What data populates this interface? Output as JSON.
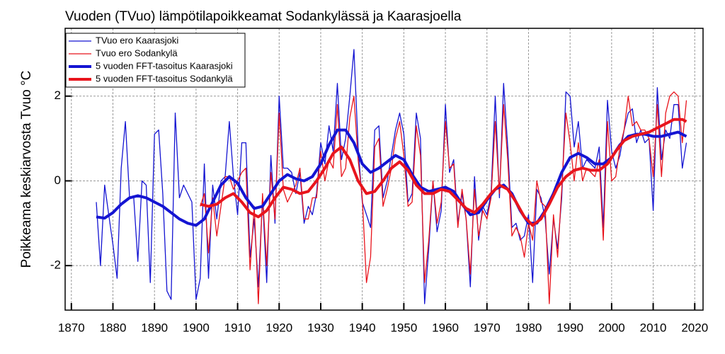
{
  "chart_data": {
    "type": "line",
    "title": "Vuoden (TVuo) lämpötilapoikkeamat Sodankylässä ja Kaarasjoella",
    "y_label": "Poikkeama keskiarvosta Tvuo °C",
    "xlim": [
      1868.5,
      2022
    ],
    "ylim": [
      -3.05,
      3.6
    ],
    "xticks": [
      1870,
      1880,
      1890,
      1900,
      1910,
      1920,
      1930,
      1940,
      1950,
      1960,
      1970,
      1980,
      1990,
      2000,
      2010,
      2020
    ],
    "yticks": [
      -2,
      0,
      2
    ],
    "grid": true,
    "legend": "top-left",
    "series": [
      {
        "name": "TVuo ero Kaarasjoki",
        "color": "#1414d2",
        "width": 1.3,
        "x": [
          1876,
          1877,
          1878,
          1879,
          1880,
          1881,
          1882,
          1883,
          1884,
          1885,
          1886,
          1887,
          1888,
          1889,
          1890,
          1891,
          1892,
          1893,
          1894,
          1895,
          1896,
          1897,
          1898,
          1899,
          1900,
          1901,
          1902,
          1903,
          1904,
          1905,
          1906,
          1907,
          1908,
          1909,
          1910,
          1911,
          1912,
          1913,
          1914,
          1915,
          1916,
          1917,
          1918,
          1919,
          1920,
          1921,
          1922,
          1923,
          1924,
          1925,
          1926,
          1927,
          1928,
          1929,
          1930,
          1931,
          1932,
          1933,
          1934,
          1935,
          1936,
          1937,
          1938,
          1939,
          1940,
          1941,
          1942,
          1943,
          1944,
          1945,
          1946,
          1947,
          1948,
          1949,
          1950,
          1951,
          1952,
          1953,
          1954,
          1955,
          1956,
          1957,
          1958,
          1959,
          1960,
          1961,
          1962,
          1963,
          1964,
          1965,
          1966,
          1967,
          1968,
          1969,
          1970,
          1971,
          1972,
          1973,
          1974,
          1975,
          1976,
          1977,
          1978,
          1979,
          1980,
          1981,
          1982,
          1983,
          1984,
          1985,
          1986,
          1987,
          1988,
          1989,
          1990,
          1991,
          1992,
          1993,
          1994,
          1995,
          1996,
          1997,
          1998,
          1999,
          2000,
          2001,
          2002,
          2003,
          2004,
          2005,
          2006,
          2007,
          2008,
          2009,
          2010,
          2011,
          2012,
          2013,
          2014,
          2015,
          2016,
          2017,
          2018
        ],
        "values": [
          -0.5,
          -2.0,
          -0.1,
          -0.8,
          -1.5,
          -2.3,
          0.3,
          1.4,
          -0.4,
          -0.4,
          -1.9,
          0.0,
          -0.1,
          -2.4,
          1.1,
          1.2,
          -0.3,
          -2.6,
          -2.8,
          1.6,
          -0.4,
          -0.1,
          -0.3,
          -0.5,
          -2.8,
          -2.3,
          0.4,
          -2.3,
          -0.1,
          -0.9,
          0.0,
          0.1,
          1.4,
          0.1,
          -0.8,
          0.9,
          0.9,
          -1.8,
          -0.9,
          -2.5,
          -0.4,
          -2.4,
          0.6,
          -1.0,
          2.0,
          0.3,
          0.3,
          0.2,
          -0.3,
          0.2,
          -1.0,
          -0.6,
          -0.8,
          -0.3,
          0.9,
          0.4,
          1.3,
          0.7,
          2.3,
          0.5,
          1.0,
          2.0,
          3.1,
          0.8,
          -0.5,
          -0.8,
          -1.1,
          1.2,
          1.3,
          -0.4,
          0.0,
          0.6,
          1.2,
          1.6,
          1.1,
          -0.5,
          -0.3,
          1.6,
          1.0,
          -2.9,
          -1.6,
          0.0,
          -1.2,
          -0.7,
          1.8,
          0.2,
          0.5,
          -1.0,
          -0.3,
          -0.9,
          -2.5,
          0.1,
          -1.4,
          -0.6,
          -0.8,
          -0.3,
          2.0,
          -0.4,
          2.3,
          0.8,
          -1.1,
          -1.0,
          -1.4,
          -1.3,
          -0.8,
          -2.4,
          -0.2,
          -0.4,
          -0.9,
          -2.2,
          -0.9,
          -1.6,
          -0.4,
          2.1,
          2.0,
          0.8,
          1.4,
          0.3,
          0.5,
          0.4,
          0.3,
          0.8,
          -1.1,
          1.9,
          0.7,
          0.3,
          0.6,
          1.2,
          1.6,
          1.7,
          0.9,
          1.2,
          0.9,
          1.0,
          -0.7,
          2.2,
          0.5,
          1.2,
          1.0,
          1.8,
          1.8,
          0.3,
          0.9
        ]
      },
      {
        "name": "Tvuo ero Sodankylä",
        "color": "#e8141c",
        "width": 1.3,
        "x": [
          1901,
          1902,
          1903,
          1904,
          1905,
          1906,
          1907,
          1908,
          1909,
          1910,
          1911,
          1912,
          1913,
          1914,
          1915,
          1916,
          1917,
          1918,
          1919,
          1920,
          1921,
          1922,
          1923,
          1924,
          1925,
          1926,
          1927,
          1928,
          1929,
          1930,
          1931,
          1932,
          1933,
          1934,
          1935,
          1936,
          1937,
          1938,
          1939,
          1940,
          1941,
          1942,
          1943,
          1944,
          1945,
          1946,
          1947,
          1948,
          1949,
          1950,
          1951,
          1952,
          1953,
          1954,
          1955,
          1956,
          1957,
          1958,
          1959,
          1960,
          1961,
          1962,
          1963,
          1964,
          1965,
          1966,
          1967,
          1968,
          1969,
          1970,
          1971,
          1972,
          1973,
          1974,
          1975,
          1976,
          1977,
          1978,
          1979,
          1980,
          1981,
          1982,
          1983,
          1984,
          1985,
          1986,
          1987,
          1988,
          1989,
          1990,
          1991,
          1992,
          1993,
          1994,
          1995,
          1996,
          1997,
          1998,
          1999,
          2000,
          2001,
          2002,
          2003,
          2004,
          2005,
          2006,
          2007,
          2008,
          2009,
          2010,
          2011,
          2012,
          2013,
          2014,
          2015,
          2016,
          2017,
          2018
        ],
        "values": [
          -0.6,
          -0.3,
          -1.7,
          -0.4,
          -1.3,
          -0.6,
          0.1,
          0.1,
          -0.2,
          0.0,
          0.2,
          0.3,
          -2.1,
          -0.6,
          -2.9,
          -0.3,
          -2.0,
          0.2,
          -0.9,
          1.6,
          -0.2,
          -0.5,
          -0.3,
          -0.1,
          0.3,
          -0.9,
          -0.9,
          -0.4,
          -0.4,
          0.7,
          0.0,
          0.5,
          0.3,
          1.8,
          0.1,
          0.3,
          1.5,
          2.0,
          0.5,
          -0.4,
          -2.4,
          -1.8,
          0.8,
          1.0,
          -0.6,
          -0.2,
          0.3,
          1.0,
          1.4,
          0.6,
          -0.6,
          -0.5,
          1.3,
          0.6,
          -2.4,
          -1.4,
          0.0,
          -1.0,
          -0.5,
          1.4,
          0.3,
          0.4,
          -1.1,
          -0.2,
          -0.9,
          -2.2,
          -0.2,
          -1.3,
          -0.7,
          -0.9,
          -0.4,
          1.4,
          -0.3,
          1.8,
          0.5,
          -1.3,
          -1.1,
          -1.3,
          -1.8,
          -1.0,
          -1.4,
          0.0,
          -0.5,
          -0.6,
          -2.9,
          -0.8,
          -1.8,
          -0.2,
          1.6,
          0.9,
          0.0,
          0.9,
          0.0,
          0.3,
          0.2,
          0.1,
          0.5,
          -1.4,
          1.4,
          0.0,
          0.1,
          0.8,
          1.2,
          2.0,
          1.3,
          1.4,
          1.2,
          1.2,
          1.0,
          0.1,
          1.8,
          0.1,
          1.6,
          2.0,
          2.1,
          2.0,
          0.9,
          1.9
        ]
      },
      {
        "name": "5 vuoden FFT-tasoitus Kaarasjoki",
        "color": "#1414d2",
        "width": 4,
        "x": [
          1876,
          1878,
          1880,
          1882,
          1884,
          1886,
          1888,
          1890,
          1892,
          1894,
          1896,
          1898,
          1900,
          1902,
          1904,
          1906,
          1908,
          1910,
          1912,
          1914,
          1916,
          1918,
          1920,
          1922,
          1924,
          1926,
          1928,
          1930,
          1932,
          1934,
          1936,
          1938,
          1940,
          1942,
          1944,
          1946,
          1948,
          1950,
          1952,
          1954,
          1956,
          1958,
          1960,
          1962,
          1964,
          1966,
          1968,
          1970,
          1972,
          1974,
          1976,
          1978,
          1980,
          1982,
          1984,
          1986,
          1988,
          1990,
          1992,
          1994,
          1996,
          1998,
          2000,
          2002,
          2004,
          2006,
          2008,
          2010,
          2012,
          2014,
          2016,
          2018
        ],
        "values": [
          -0.85,
          -0.88,
          -0.75,
          -0.55,
          -0.4,
          -0.35,
          -0.4,
          -0.5,
          -0.6,
          -0.75,
          -0.9,
          -1.0,
          -1.05,
          -0.9,
          -0.5,
          -0.1,
          0.1,
          -0.05,
          -0.4,
          -0.65,
          -0.6,
          -0.3,
          0.0,
          0.15,
          0.05,
          0.0,
          0.1,
          0.4,
          0.85,
          1.2,
          1.2,
          0.9,
          0.4,
          0.2,
          0.3,
          0.45,
          0.6,
          0.5,
          0.15,
          -0.15,
          -0.25,
          -0.2,
          -0.15,
          -0.25,
          -0.55,
          -0.8,
          -0.75,
          -0.45,
          -0.2,
          -0.1,
          -0.3,
          -0.7,
          -1.0,
          -1.0,
          -0.7,
          -0.3,
          0.2,
          0.55,
          0.65,
          0.55,
          0.4,
          0.4,
          0.55,
          0.85,
          1.05,
          1.1,
          1.1,
          1.05,
          1.05,
          1.1,
          1.15,
          1.05
        ]
      },
      {
        "name": "5 vuoden FFT-tasoitus Sodankylä",
        "color": "#e8141c",
        "width": 4,
        "x": [
          1901,
          1903,
          1905,
          1907,
          1909,
          1911,
          1913,
          1915,
          1917,
          1919,
          1921,
          1923,
          1925,
          1927,
          1929,
          1931,
          1933,
          1935,
          1937,
          1939,
          1941,
          1943,
          1945,
          1947,
          1949,
          1951,
          1953,
          1955,
          1957,
          1959,
          1961,
          1963,
          1965,
          1967,
          1969,
          1971,
          1973,
          1975,
          1977,
          1979,
          1981,
          1983,
          1985,
          1987,
          1989,
          1991,
          1993,
          1995,
          1997,
          1999,
          2001,
          2003,
          2005,
          2007,
          2009,
          2011,
          2013,
          2015,
          2017,
          2018
        ],
        "values": [
          -0.55,
          -0.6,
          -0.55,
          -0.4,
          -0.3,
          -0.5,
          -0.75,
          -0.85,
          -0.7,
          -0.4,
          -0.15,
          -0.2,
          -0.3,
          -0.25,
          0.0,
          0.3,
          0.65,
          0.8,
          0.5,
          0.0,
          -0.3,
          -0.25,
          0.0,
          0.3,
          0.45,
          0.25,
          -0.1,
          -0.3,
          -0.3,
          -0.2,
          -0.25,
          -0.45,
          -0.65,
          -0.75,
          -0.55,
          -0.3,
          -0.1,
          -0.2,
          -0.5,
          -0.85,
          -1.05,
          -0.9,
          -0.55,
          -0.15,
          0.1,
          0.25,
          0.3,
          0.25,
          0.25,
          0.4,
          0.7,
          0.95,
          1.05,
          1.1,
          1.15,
          1.25,
          1.35,
          1.45,
          1.45,
          1.4
        ]
      }
    ]
  }
}
